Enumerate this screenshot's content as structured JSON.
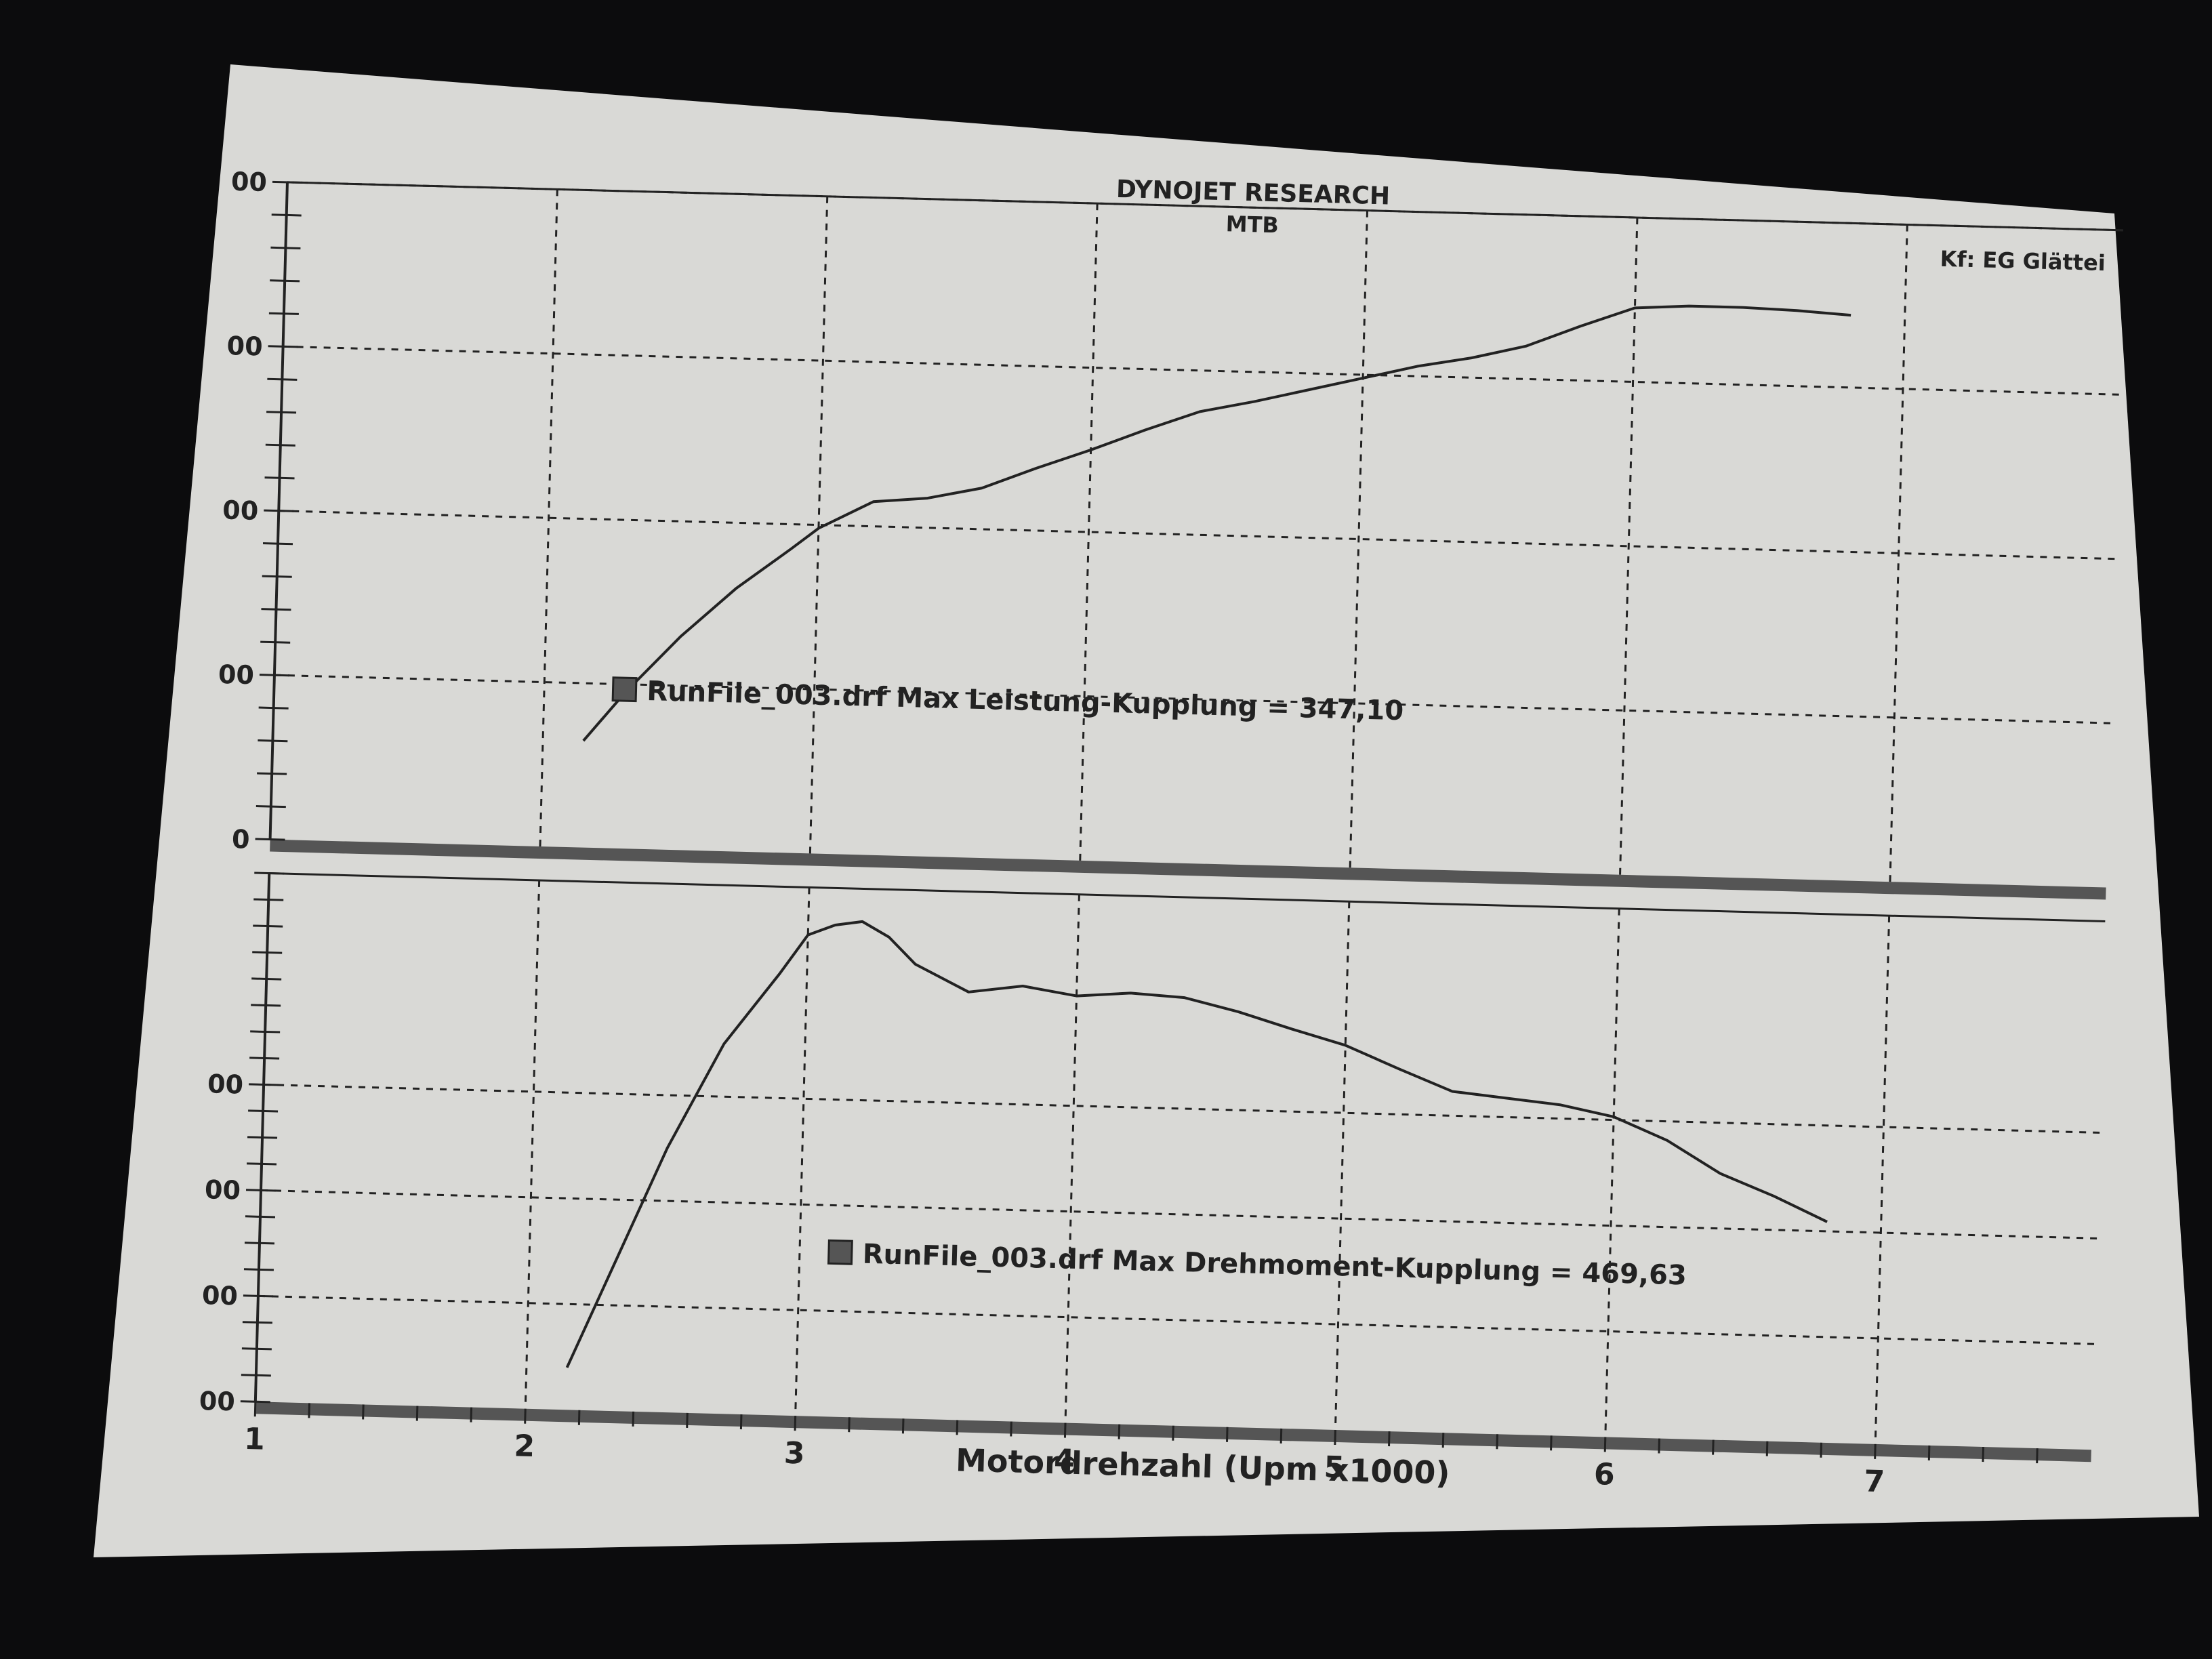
{
  "header": {
    "title": "DYNOJET RESEARCH",
    "subtitle": "MTB",
    "right_label": "Kf: EG  Glättei"
  },
  "colors": {
    "paper": "#d9d9d6",
    "ink": "#222222",
    "background": "#0c0c0d"
  },
  "chart_data": [
    {
      "type": "line",
      "name": "power",
      "xlim": [
        1,
        7.8
      ],
      "ylim": [
        0,
        400
      ],
      "grid": true,
      "y_tick_labels": [
        "0",
        "00",
        "00",
        "00",
        "00"
      ],
      "y_tick_values": [
        0,
        100,
        200,
        300,
        400
      ],
      "vgrid_x": [
        2,
        3,
        4,
        5,
        6,
        7
      ],
      "legend_text": "RunFile_003.drf Max Leistung-Kupplung = 347,10",
      "series": [
        {
          "x": [
            2.15,
            2.3,
            2.5,
            2.7,
            2.9,
            3.0,
            3.2,
            3.4,
            3.6,
            3.8,
            4.0,
            4.2,
            4.4,
            4.6,
            4.8,
            5.0,
            5.2,
            5.4,
            5.6,
            5.8,
            6.0,
            6.2,
            6.4,
            6.6,
            6.8
          ],
          "y": [
            65,
            95,
            130,
            160,
            185,
            198,
            215,
            218,
            225,
            238,
            250,
            263,
            275,
            282,
            290,
            298,
            306,
            312,
            320,
            333,
            345,
            347,
            347,
            346,
            344
          ]
        }
      ]
    },
    {
      "type": "line",
      "name": "torque",
      "xlim": [
        1,
        7.8
      ],
      "ylim": [
        0,
        500
      ],
      "grid": true,
      "y_tick_labels": [
        "00",
        "00",
        "00",
        "00"
      ],
      "y_tick_values": [
        0,
        100,
        200,
        300
      ],
      "vgrid_x": [
        2,
        3,
        4,
        5,
        6,
        7
      ],
      "legend_text": "RunFile_003.drf Max Drehmoment-Kupplung = 469,63",
      "series": [
        {
          "x": [
            2.15,
            2.3,
            2.5,
            2.7,
            2.9,
            3.0,
            3.1,
            3.2,
            3.3,
            3.4,
            3.6,
            3.8,
            4.0,
            4.2,
            4.4,
            4.6,
            4.8,
            5.0,
            5.2,
            5.4,
            5.6,
            5.8,
            6.0,
            6.2,
            6.4,
            6.6,
            6.8
          ],
          "y": [
            40,
            130,
            250,
            350,
            418,
            455,
            465,
            469,
            455,
            430,
            405,
            412,
            404,
            408,
            405,
            393,
            378,
            364,
            343,
            323,
            318,
            313,
            303,
            282,
            252,
            232,
            209
          ]
        }
      ]
    }
  ],
  "x_axis": {
    "label": "Motordrehzahl (Upm x1000)",
    "ticks": [
      "1",
      "2",
      "3",
      "4",
      "5",
      "6",
      "7"
    ]
  }
}
